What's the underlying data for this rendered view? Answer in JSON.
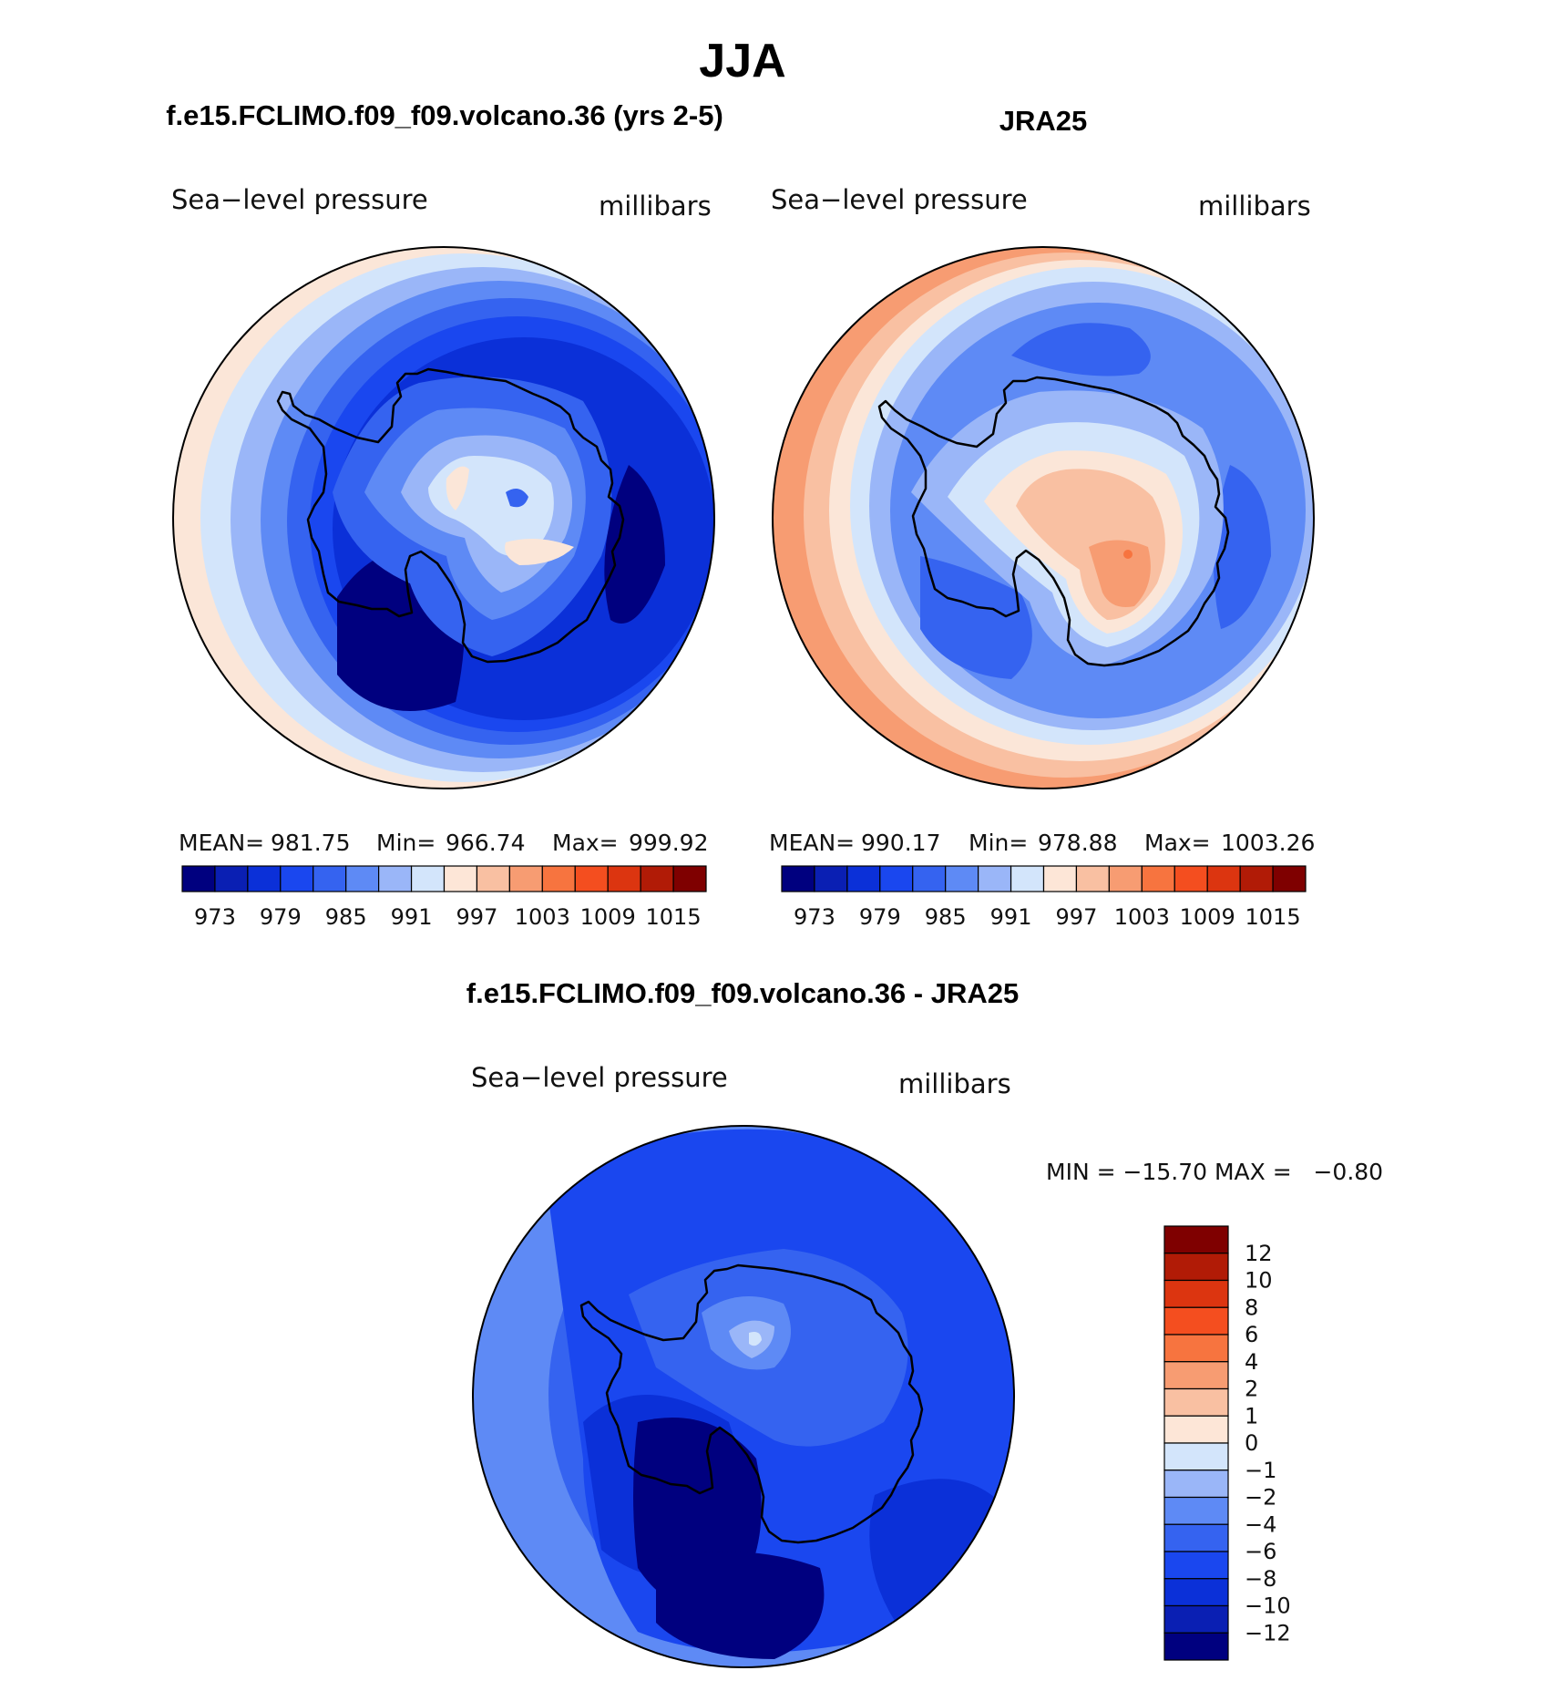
{
  "figure": {
    "main_title": "JJA",
    "left_panel_title": "f.e15.FCLIMO.f09_f09.volcano.36 (yrs 2-5)",
    "right_panel_title": "JRA25",
    "diff_panel_title": "f.e15.FCLIMO.f09_f09.volcano.36 - JRA25"
  },
  "chart_data": [
    {
      "type": "heatmap",
      "projection": "south polar stereographic",
      "title": "f.e15.FCLIMO.f09_f09.volcano.36 (yrs 2-5)",
      "variable": "Sea−level pressure",
      "units": "millibars",
      "stats": {
        "mean_label": "MEAN=",
        "mean": "981.75",
        "min_label": "Min=",
        "min": "966.74",
        "max_label": "Max=",
        "max": "999.92"
      },
      "levels": [
        970,
        973,
        976,
        979,
        982,
        985,
        988,
        991,
        994,
        997,
        1000,
        1003,
        1006,
        1009,
        1012,
        1015
      ],
      "tick_labels": [
        "973",
        "979",
        "985",
        "991",
        "997",
        "1003",
        "1009",
        "1015"
      ]
    },
    {
      "type": "heatmap",
      "projection": "south polar stereographic",
      "title": "JRA25",
      "variable": "Sea−level pressure",
      "units": "millibars",
      "stats": {
        "mean_label": "MEAN=",
        "mean": "990.17",
        "min_label": "Min=",
        "min": "978.88",
        "max_label": "Max=",
        "max": "1003.26"
      },
      "levels": [
        970,
        973,
        976,
        979,
        982,
        985,
        988,
        991,
        994,
        997,
        1000,
        1003,
        1006,
        1009,
        1012,
        1015
      ],
      "tick_labels": [
        "973",
        "979",
        "985",
        "991",
        "997",
        "1003",
        "1009",
        "1015"
      ]
    },
    {
      "type": "heatmap",
      "projection": "south polar stereographic",
      "title": "f.e15.FCLIMO.f09_f09.volcano.36 - JRA25",
      "variable": "Sea−level pressure",
      "units": "millibars",
      "stats": {
        "text": "MIN = −15.70 MAX =   −0.80",
        "min": -15.7,
        "max": -0.8
      },
      "levels": [
        -12,
        -10,
        -8,
        -6,
        -4,
        -2,
        -1,
        0,
        1,
        2,
        4,
        6,
        8,
        10,
        12
      ],
      "tick_labels": [
        "12",
        "10",
        "8",
        "6",
        "4",
        "2",
        "1",
        "0",
        "−1",
        "−2",
        "−4",
        "−6",
        "−8",
        "−10",
        "−12"
      ]
    }
  ],
  "palette": [
    "#00007f",
    "#0a1fb3",
    "#0b30d8",
    "#1a47ef",
    "#3563f0",
    "#5e8af5",
    "#9ab6f8",
    "#d3e5fb",
    "#fde6d7",
    "#f9c0a2",
    "#f79c72",
    "#f7743f",
    "#f44e1f",
    "#dc3510",
    "#b11b06",
    "#7f0000"
  ]
}
